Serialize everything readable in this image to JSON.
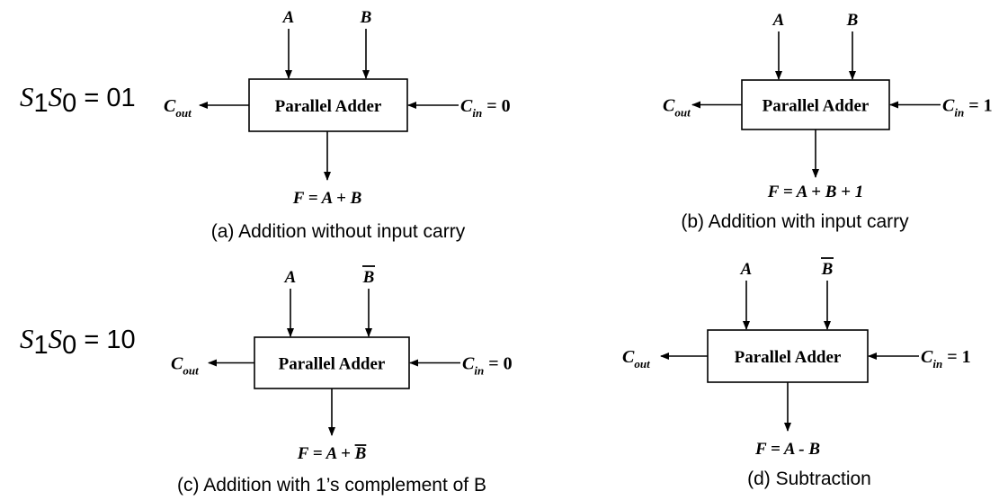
{
  "select_rows": [
    {
      "s1": "S",
      "s1_sub": "1",
      "s0": "S",
      "s0_sub": "0",
      "eq": " = 01"
    },
    {
      "s1": "S",
      "s1_sub": "1",
      "s0": "S",
      "s0_sub": "0",
      "eq": " = 10"
    }
  ],
  "panels": [
    {
      "id": "a",
      "block_label": "Parallel Adder",
      "input_a": "A",
      "input_b": "B",
      "input_b_bar": false,
      "cout_main": "C",
      "cout_sub": "out",
      "cin_main": "C",
      "cin_sub": "in",
      "cin_value": " = 0",
      "output": {
        "prefix": "F = A + ",
        "var": "B",
        "var_bar": false,
        "suffix": ""
      },
      "caption": "(a) Addition without input carry"
    },
    {
      "id": "b",
      "block_label": "Parallel Adder",
      "input_a": "A",
      "input_b": "B",
      "input_b_bar": false,
      "cout_main": "C",
      "cout_sub": "out",
      "cin_main": "C",
      "cin_sub": "in",
      "cin_value": " = 1",
      "output": {
        "prefix": "F = A + ",
        "var": "B",
        "var_bar": false,
        "suffix": " + 1"
      },
      "caption": "(b) Addition with input carry"
    },
    {
      "id": "c",
      "block_label": "Parallel Adder",
      "input_a": "A",
      "input_b": "B",
      "input_b_bar": true,
      "cout_main": "C",
      "cout_sub": "out",
      "cin_main": "C",
      "cin_sub": "in",
      "cin_value": " = 0",
      "output": {
        "prefix": "F = A + ",
        "var": "B",
        "var_bar": true,
        "suffix": ""
      },
      "caption": "(c) Addition with 1’s complement of B"
    },
    {
      "id": "d",
      "block_label": "Parallel Adder",
      "input_a": "A",
      "input_b": "B",
      "input_b_bar": true,
      "cout_main": "C",
      "cout_sub": "out",
      "cin_main": "C",
      "cin_sub": "in",
      "cin_value": " = 1",
      "output": {
        "prefix": "F = A - ",
        "var": "B",
        "var_bar": false,
        "suffix": ""
      },
      "caption": "(d) Subtraction"
    }
  ]
}
